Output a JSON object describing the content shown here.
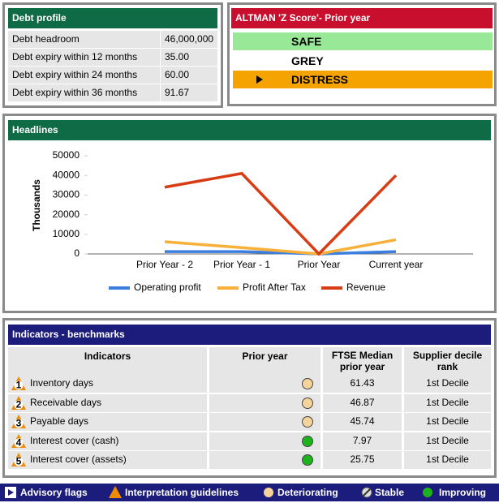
{
  "debt_profile": {
    "title": "Debt profile",
    "rows": [
      [
        "Debt headroom",
        "46,000,000"
      ],
      [
        "Debt expiry within 12 months",
        "35.00"
      ],
      [
        "Debt expiry within 24 months",
        "60.00"
      ],
      [
        "Debt expiry within 36 months",
        "91.67"
      ]
    ]
  },
  "altman": {
    "title": "ALTMAN 'Z Score'- Prior year",
    "levels": [
      {
        "label": "SAFE",
        "color": "#98e898"
      },
      {
        "label": "GREY",
        "color": "#ffffff"
      },
      {
        "label": "DISTRESS",
        "color": "#f5a300"
      }
    ],
    "selected": "DISTRESS"
  },
  "chart_data": {
    "type": "line",
    "title": "Headlines",
    "y_label": "Thousands",
    "categories": [
      "Prior Year - 2",
      "Prior Year - 1",
      "Prior Year",
      "Current year"
    ],
    "series": [
      {
        "name": "Operating profit",
        "color": "#3a7fe0",
        "values": [
          1200,
          1200,
          0,
          1200
        ]
      },
      {
        "name": "Profit After Tax",
        "color": "#f8b03a",
        "values": [
          6200,
          3200,
          0,
          7200
        ]
      },
      {
        "name": "Revenue",
        "color": "#d83c14",
        "values": [
          34000,
          41000,
          0,
          40000
        ]
      }
    ],
    "ylim": [
      0,
      50000
    ],
    "yticks": [
      0,
      10000,
      20000,
      30000,
      40000,
      50000
    ],
    "grid": false
  },
  "indicators": {
    "title": "Indicators - benchmarks",
    "columns": [
      "Indicators",
      "Prior year",
      "FTSE Median prior year",
      "Supplier decile rank"
    ],
    "rows": [
      {
        "number": "1",
        "name": "Inventory days",
        "status": "Deteriorating",
        "ftse": "61.43",
        "decile": "1st Decile"
      },
      {
        "number": "2",
        "name": "Receivable days",
        "status": "Deteriorating",
        "ftse": "46.87",
        "decile": "1st Decile"
      },
      {
        "number": "3",
        "name": "Payable days",
        "status": "Deteriorating",
        "ftse": "45.74",
        "decile": "1st Decile"
      },
      {
        "number": "4",
        "name": "Interest cover (cash)",
        "status": "Improving",
        "ftse": "7.97",
        "decile": "1st Decile"
      },
      {
        "number": "5",
        "name": "Interest cover (assets)",
        "status": "Improving",
        "ftse": "25.75",
        "decile": "1st Decile"
      }
    ]
  },
  "footer": {
    "items": [
      {
        "label": "Advisory flags"
      },
      {
        "label": "Interpretation guidelines"
      },
      {
        "label": "Deteriorating",
        "color": "#f5d49c"
      },
      {
        "label": "Stable"
      },
      {
        "label": "Improving",
        "color": "#1db31d"
      }
    ]
  }
}
